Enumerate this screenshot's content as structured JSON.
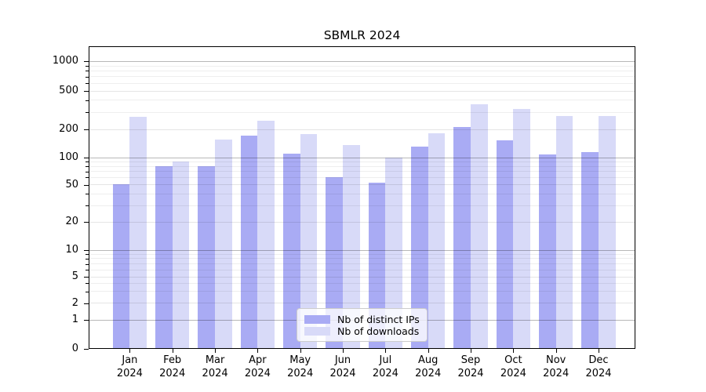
{
  "title": "SBMLR 2024",
  "chart_data": {
    "type": "bar",
    "title": "SBMLR 2024",
    "xlabel": "",
    "ylabel": "",
    "yscale": "log-like (custom ticks, 0 baseline)",
    "grid": "horizontal major + minor log gridlines",
    "legend_position": "lower center",
    "ylim": [
      0,
      1400
    ],
    "y_ticks": [
      0,
      1,
      2,
      5,
      10,
      20,
      50,
      100,
      200,
      500,
      1000
    ],
    "x_year": "2024",
    "categories": [
      "Jan",
      "Feb",
      "Mar",
      "Apr",
      "May",
      "Jun",
      "Jul",
      "Aug",
      "Sep",
      "Oct",
      "Nov",
      "Dec"
    ],
    "series": [
      {
        "name": "Nb of distinct IPs",
        "color": "#a9abf4",
        "values": [
          51,
          80,
          81,
          172,
          110,
          60,
          53,
          132,
          210,
          152,
          108,
          114
        ]
      },
      {
        "name": "Nb of downloads",
        "color": "#d8daf8",
        "values": [
          272,
          90,
          155,
          245,
          178,
          136,
          100,
          182,
          365,
          325,
          277,
          274
        ]
      }
    ]
  }
}
